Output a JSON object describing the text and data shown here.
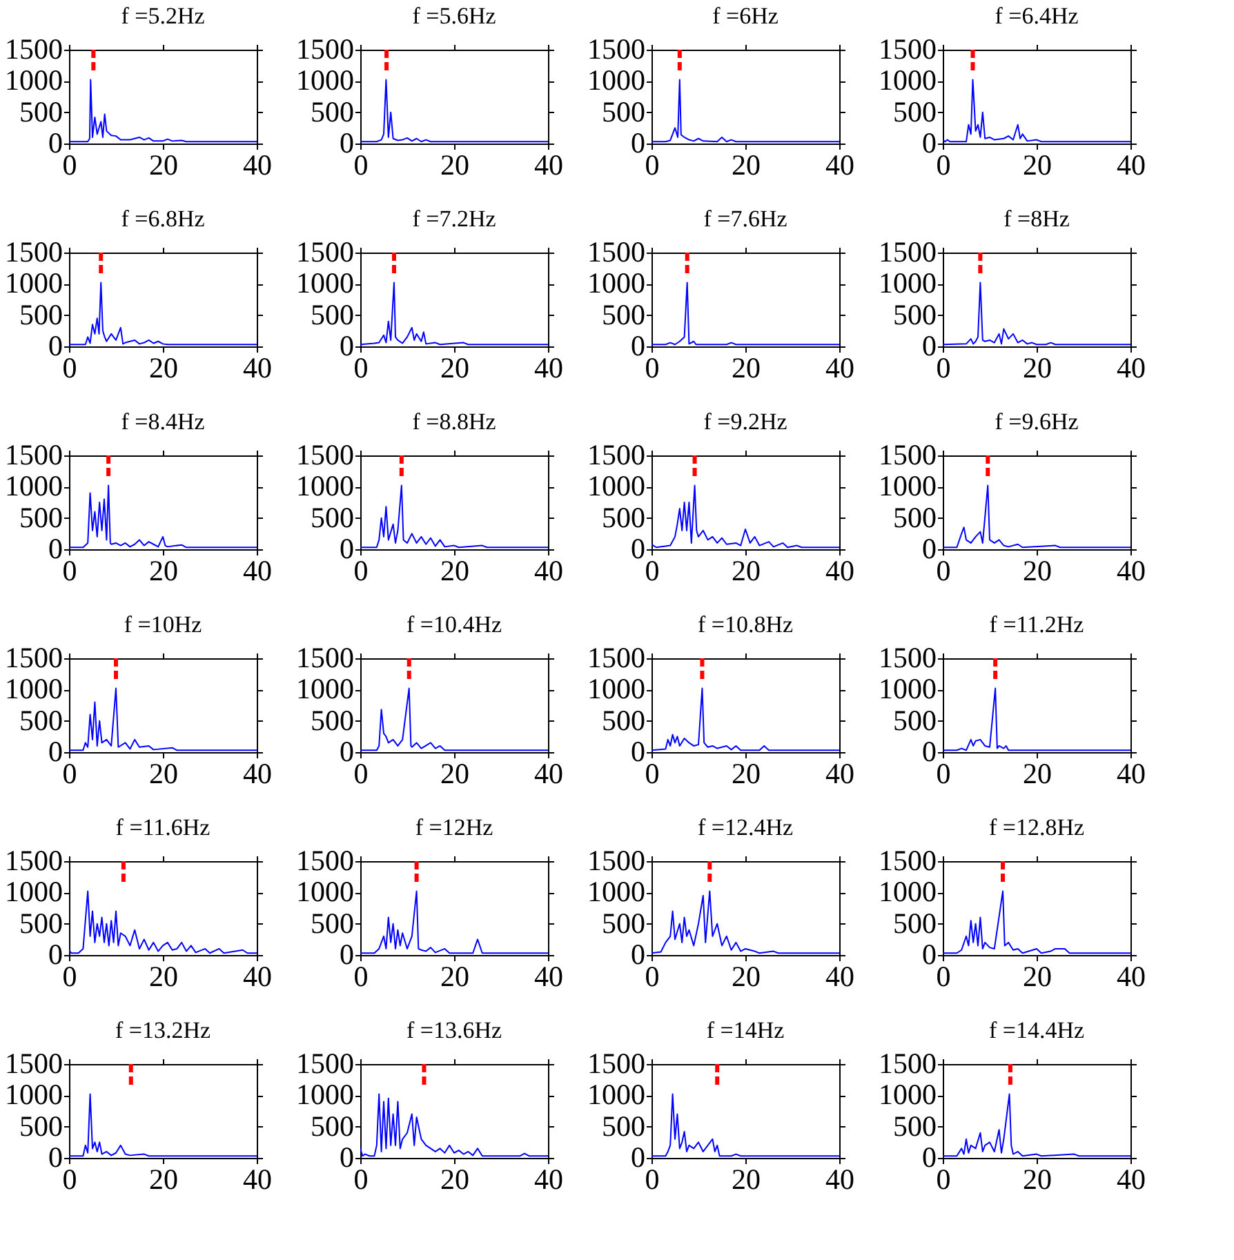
{
  "chart_data": [
    {
      "type": "line",
      "title": "f =5.2Hz",
      "color": "#0000ff",
      "xlim": [
        0,
        40
      ],
      "ylim": [
        0,
        1500
      ],
      "xticks": [
        0,
        20,
        40
      ],
      "yticks": [
        0,
        500,
        1000,
        1500
      ],
      "ref_lines": [
        {
          "axis": "x",
          "value": 5.2,
          "color": "#ff0000",
          "line_style": "dashed"
        }
      ],
      "x": [
        0,
        4,
        4.4,
        4.6,
        5,
        5.5,
        6,
        6.8,
        7.2,
        7.6,
        8,
        9,
        10,
        11,
        13,
        15,
        16,
        17,
        18,
        20,
        21,
        22,
        24,
        25,
        40
      ],
      "values": [
        30,
        30,
        80,
        1020,
        100,
        420,
        150,
        350,
        100,
        470,
        200,
        130,
        120,
        60,
        60,
        100,
        60,
        90,
        40,
        40,
        70,
        40,
        50,
        30,
        30
      ]
    },
    {
      "type": "line",
      "title": "f =5.6Hz",
      "color": "#0000ff",
      "xlim": [
        0,
        40
      ],
      "ylim": [
        0,
        1500
      ],
      "xticks": [
        0,
        20,
        40
      ],
      "yticks": [
        0,
        500,
        1000,
        1500
      ],
      "ref_lines": [
        {
          "axis": "x",
          "value": 5.6,
          "color": "#ff0000",
          "line_style": "dashed"
        }
      ],
      "x": [
        0,
        3.5,
        4.5,
        5,
        5.5,
        6,
        6.5,
        7,
        8,
        9,
        10,
        11,
        12,
        13,
        14,
        15,
        40
      ],
      "values": [
        30,
        30,
        60,
        150,
        1020,
        100,
        500,
        80,
        50,
        60,
        90,
        40,
        80,
        30,
        60,
        30,
        30
      ]
    },
    {
      "type": "line",
      "title": "f =6Hz",
      "color": "#0000ff",
      "xlim": [
        0,
        40
      ],
      "ylim": [
        0,
        1500
      ],
      "xticks": [
        0,
        20,
        40
      ],
      "yticks": [
        0,
        500,
        1000,
        1500
      ],
      "ref_lines": [
        {
          "axis": "x",
          "value": 6,
          "color": "#ff0000",
          "line_style": "dashed"
        }
      ],
      "x": [
        0,
        3,
        4,
        5,
        5.6,
        6,
        6.3,
        7,
        8,
        9,
        10,
        11,
        14,
        15,
        16,
        17,
        18,
        40
      ],
      "values": [
        30,
        30,
        50,
        250,
        100,
        1020,
        140,
        100,
        60,
        40,
        80,
        40,
        30,
        100,
        30,
        60,
        30,
        30
      ]
    },
    {
      "type": "line",
      "title": "f =6.4Hz",
      "color": "#0000ff",
      "xlim": [
        0,
        40
      ],
      "ylim": [
        0,
        1500
      ],
      "xticks": [
        0,
        20,
        40
      ],
      "yticks": [
        0,
        500,
        1000,
        1500
      ],
      "ref_lines": [
        {
          "axis": "x",
          "value": 6.4,
          "color": "#ff0000",
          "line_style": "dashed"
        }
      ],
      "x": [
        0,
        0.5,
        1,
        1.5,
        5,
        5.5,
        6,
        6.4,
        7,
        7.5,
        8,
        8.5,
        9,
        10,
        11,
        13,
        14,
        15,
        16,
        16.5,
        17,
        18,
        20,
        21,
        40
      ],
      "values": [
        60,
        30,
        60,
        30,
        30,
        300,
        150,
        1020,
        200,
        300,
        100,
        500,
        80,
        100,
        60,
        80,
        120,
        60,
        300,
        80,
        150,
        40,
        60,
        30,
        30
      ]
    },
    {
      "type": "line",
      "title": "f =6.8Hz",
      "color": "#0000ff",
      "xlim": [
        0,
        40
      ],
      "ylim": [
        0,
        1500
      ],
      "xticks": [
        0,
        20,
        40
      ],
      "yticks": [
        0,
        500,
        1000,
        1500
      ],
      "ref_lines": [
        {
          "axis": "x",
          "value": 6.8,
          "color": "#ff0000",
          "line_style": "dashed"
        }
      ],
      "x": [
        0,
        3.5,
        4,
        4.5,
        5,
        5.5,
        6,
        6.4,
        6.8,
        7.2,
        7.6,
        8,
        9,
        10,
        11,
        11.5,
        12,
        14,
        15,
        16,
        17,
        18,
        19,
        20,
        21,
        40
      ],
      "values": [
        30,
        30,
        150,
        50,
        350,
        200,
        450,
        200,
        1020,
        250,
        150,
        80,
        200,
        100,
        300,
        40,
        60,
        100,
        40,
        60,
        100,
        50,
        80,
        40,
        30,
        30
      ]
    },
    {
      "type": "line",
      "title": "f =7.2Hz",
      "color": "#0000ff",
      "xlim": [
        0,
        40
      ],
      "ylim": [
        0,
        1500
      ],
      "xticks": [
        0,
        20,
        40
      ],
      "yticks": [
        0,
        500,
        1000,
        1500
      ],
      "ref_lines": [
        {
          "axis": "x",
          "value": 7.2,
          "color": "#ff0000",
          "line_style": "dashed"
        }
      ],
      "x": [
        0,
        3,
        4,
        5,
        5.5,
        6,
        6.5,
        7.2,
        7.5,
        8,
        9,
        10,
        11,
        11.5,
        12,
        13,
        13.5,
        14,
        16,
        17,
        22,
        23,
        40
      ],
      "values": [
        30,
        50,
        60,
        180,
        60,
        400,
        100,
        1020,
        150,
        100,
        50,
        150,
        300,
        100,
        200,
        80,
        230,
        40,
        60,
        30,
        60,
        30,
        30
      ]
    },
    {
      "type": "line",
      "title": "f =7.6Hz",
      "color": "#0000ff",
      "xlim": [
        0,
        40
      ],
      "ylim": [
        0,
        1500
      ],
      "xticks": [
        0,
        20,
        40
      ],
      "yticks": [
        0,
        500,
        1000,
        1500
      ],
      "ref_lines": [
        {
          "axis": "x",
          "value": 7.6,
          "color": "#ff0000",
          "line_style": "dashed"
        }
      ],
      "x": [
        0,
        3,
        4,
        5,
        6,
        7,
        7.6,
        8,
        9,
        9.5,
        16,
        17,
        18,
        40
      ],
      "values": [
        30,
        30,
        60,
        30,
        80,
        150,
        1020,
        40,
        80,
        30,
        30,
        60,
        30,
        30
      ]
    },
    {
      "type": "line",
      "title": "f =8Hz",
      "color": "#0000ff",
      "xlim": [
        0,
        40
      ],
      "ylim": [
        0,
        1500
      ],
      "xticks": [
        0,
        20,
        40
      ],
      "yticks": [
        0,
        500,
        1000,
        1500
      ],
      "ref_lines": [
        {
          "axis": "x",
          "value": 8,
          "color": "#ff0000",
          "line_style": "dashed"
        }
      ],
      "x": [
        0,
        5,
        6,
        6.5,
        7,
        7.5,
        8,
        8.5,
        9,
        10,
        11,
        12,
        12.5,
        13,
        14,
        15,
        16,
        17,
        18,
        19,
        20,
        22,
        23,
        24,
        40
      ],
      "values": [
        30,
        40,
        120,
        40,
        80,
        150,
        1020,
        100,
        80,
        100,
        60,
        200,
        40,
        280,
        120,
        200,
        60,
        100,
        40,
        60,
        30,
        30,
        60,
        30,
        30
      ]
    },
    {
      "type": "line",
      "title": "f =8.4Hz",
      "color": "#0000ff",
      "xlim": [
        0,
        40
      ],
      "ylim": [
        0,
        1500
      ],
      "xticks": [
        0,
        20,
        40
      ],
      "yticks": [
        0,
        500,
        1000,
        1500
      ],
      "ref_lines": [
        {
          "axis": "x",
          "value": 8.4,
          "color": "#ff0000",
          "line_style": "dashed"
        }
      ],
      "x": [
        0,
        3,
        4,
        4.5,
        5,
        5.5,
        6,
        6.5,
        7,
        7.5,
        8,
        8.4,
        8.8,
        9,
        10,
        11,
        12,
        13,
        14,
        15,
        16,
        17,
        18,
        19,
        20,
        20.5,
        21,
        24,
        25,
        40
      ],
      "values": [
        30,
        30,
        100,
        900,
        300,
        600,
        200,
        750,
        300,
        800,
        150,
        1020,
        100,
        80,
        100,
        60,
        100,
        40,
        80,
        150,
        60,
        120,
        80,
        40,
        200,
        60,
        40,
        70,
        30,
        30
      ]
    },
    {
      "type": "line",
      "title": "f =8.8Hz",
      "color": "#0000ff",
      "xlim": [
        0,
        40
      ],
      "ylim": [
        0,
        1500
      ],
      "xticks": [
        0,
        20,
        40
      ],
      "yticks": [
        0,
        500,
        1000,
        1500
      ],
      "ref_lines": [
        {
          "axis": "x",
          "value": 8.8,
          "color": "#ff0000",
          "line_style": "dashed"
        }
      ],
      "x": [
        0,
        3.5,
        4,
        4.5,
        5,
        5.5,
        6,
        7,
        7.5,
        8,
        8.8,
        9.2,
        10,
        11,
        12,
        13,
        14,
        15,
        16,
        17,
        18,
        20,
        21,
        26,
        27,
        40
      ],
      "values": [
        30,
        30,
        150,
        500,
        200,
        680,
        150,
        400,
        100,
        300,
        1020,
        150,
        100,
        250,
        100,
        200,
        80,
        180,
        50,
        150,
        40,
        60,
        30,
        60,
        30,
        30
      ]
    },
    {
      "type": "line",
      "title": "f =9.2Hz",
      "color": "#0000ff",
      "xlim": [
        0,
        40
      ],
      "ylim": [
        0,
        1500
      ],
      "xticks": [
        0,
        20,
        40
      ],
      "yticks": [
        0,
        500,
        1000,
        1500
      ],
      "ref_lines": [
        {
          "axis": "x",
          "value": 9.2,
          "color": "#ff0000",
          "line_style": "dashed"
        }
      ],
      "x": [
        0,
        1,
        4,
        5,
        5.5,
        6,
        6.5,
        7,
        7.5,
        8,
        8.5,
        9.2,
        9.6,
        10,
        11,
        12,
        13,
        14,
        15,
        16,
        18,
        19,
        20,
        21,
        22,
        23,
        25,
        26,
        28,
        29,
        31,
        32,
        40
      ],
      "values": [
        80,
        30,
        60,
        200,
        400,
        650,
        300,
        750,
        300,
        750,
        100,
        1020,
        300,
        200,
        300,
        150,
        200,
        100,
        180,
        80,
        100,
        60,
        320,
        100,
        200,
        60,
        120,
        40,
        100,
        30,
        60,
        30,
        30
      ]
    },
    {
      "type": "line",
      "title": "f =9.6Hz",
      "color": "#0000ff",
      "xlim": [
        0,
        40
      ],
      "ylim": [
        0,
        1500
      ],
      "xticks": [
        0,
        20,
        40
      ],
      "yticks": [
        0,
        500,
        1000,
        1500
      ],
      "ref_lines": [
        {
          "axis": "x",
          "value": 9.6,
          "color": "#ff0000",
          "line_style": "dashed"
        }
      ],
      "x": [
        0,
        3,
        4,
        4.5,
        5,
        6,
        7,
        8,
        8.5,
        9.6,
        10,
        11,
        12,
        13,
        14,
        16,
        17,
        24,
        25,
        40
      ],
      "values": [
        30,
        30,
        250,
        350,
        150,
        100,
        200,
        280,
        100,
        1020,
        150,
        100,
        150,
        60,
        40,
        80,
        30,
        60,
        30,
        30
      ]
    },
    {
      "type": "line",
      "title": "f =10Hz",
      "color": "#0000ff",
      "xlim": [
        0,
        40
      ],
      "ylim": [
        0,
        1500
      ],
      "xticks": [
        0,
        20,
        40
      ],
      "yticks": [
        0,
        500,
        1000,
        1500
      ],
      "ref_lines": [
        {
          "axis": "x",
          "value": 10,
          "color": "#ff0000",
          "line_style": "dashed"
        }
      ],
      "x": [
        0,
        3,
        3.5,
        4,
        4.5,
        5,
        5.5,
        6,
        6.5,
        7,
        8,
        9,
        10,
        10.5,
        12,
        13,
        14,
        15,
        17,
        18,
        22,
        23,
        40
      ],
      "values": [
        30,
        30,
        150,
        80,
        600,
        200,
        800,
        100,
        500,
        150,
        200,
        100,
        1020,
        80,
        150,
        50,
        200,
        80,
        100,
        40,
        70,
        30,
        30
      ]
    },
    {
      "type": "line",
      "title": "f =10.4Hz",
      "color": "#0000ff",
      "xlim": [
        0,
        40
      ],
      "ylim": [
        0,
        1500
      ],
      "xticks": [
        0,
        20,
        40
      ],
      "yticks": [
        0,
        500,
        1000,
        1500
      ],
      "ref_lines": [
        {
          "axis": "x",
          "value": 10.4,
          "color": "#ff0000",
          "line_style": "dashed"
        }
      ],
      "x": [
        0,
        3.5,
        4,
        4.5,
        5,
        5.5,
        6,
        7,
        8,
        9,
        10.4,
        10.8,
        11,
        12,
        13,
        15,
        16,
        17,
        18,
        40
      ],
      "values": [
        30,
        30,
        100,
        680,
        300,
        250,
        150,
        200,
        100,
        200,
        1020,
        100,
        80,
        150,
        60,
        150,
        60,
        100,
        30,
        30
      ]
    },
    {
      "type": "line",
      "title": "f =10.8Hz",
      "color": "#0000ff",
      "xlim": [
        0,
        40
      ],
      "ylim": [
        0,
        1500
      ],
      "xticks": [
        0,
        20,
        40
      ],
      "yticks": [
        0,
        500,
        1000,
        1500
      ],
      "ref_lines": [
        {
          "axis": "x",
          "value": 10.8,
          "color": "#ff0000",
          "line_style": "dashed"
        }
      ],
      "x": [
        0,
        3,
        3.5,
        4,
        4.5,
        5,
        5.5,
        6,
        7,
        8,
        9,
        10,
        10.8,
        11.2,
        12,
        13,
        14,
        16,
        17,
        18,
        19,
        23,
        24,
        25,
        40
      ],
      "values": [
        30,
        50,
        200,
        100,
        280,
        150,
        250,
        100,
        220,
        150,
        100,
        120,
        1020,
        150,
        80,
        100,
        60,
        100,
        40,
        100,
        30,
        30,
        100,
        30,
        30
      ]
    },
    {
      "type": "line",
      "title": "f =11.2Hz",
      "color": "#0000ff",
      "xlim": [
        0,
        40
      ],
      "ylim": [
        0,
        1500
      ],
      "xticks": [
        0,
        20,
        40
      ],
      "yticks": [
        0,
        500,
        1000,
        1500
      ],
      "ref_lines": [
        {
          "axis": "x",
          "value": 11.2,
          "color": "#ff0000",
          "line_style": "dashed"
        }
      ],
      "x": [
        0,
        3,
        4,
        5,
        6,
        6.5,
        7,
        8,
        9,
        10,
        11.2,
        11.6,
        12,
        13,
        13.5,
        14,
        40
      ],
      "values": [
        30,
        30,
        60,
        30,
        200,
        100,
        180,
        200,
        100,
        80,
        1020,
        60,
        100,
        60,
        100,
        30,
        30
      ]
    },
    {
      "type": "line",
      "title": "f =11.6Hz",
      "color": "#0000ff",
      "xlim": [
        0,
        40
      ],
      "ylim": [
        0,
        1500
      ],
      "xticks": [
        0,
        20,
        40
      ],
      "yticks": [
        0,
        500,
        1000,
        1500
      ],
      "ref_lines": [
        {
          "axis": "x",
          "value": 11.6,
          "color": "#ff0000",
          "line_style": "dashed"
        }
      ],
      "x": [
        0,
        0.5,
        2,
        3,
        4,
        4.5,
        5,
        5.5,
        6,
        6.5,
        7,
        7.5,
        8,
        8.5,
        9,
        9.5,
        10,
        10.5,
        11,
        12,
        13,
        14,
        15,
        16,
        17,
        18,
        19,
        20,
        21,
        22,
        23,
        24,
        25,
        26,
        27,
        29,
        30,
        32,
        33,
        37,
        38,
        40
      ],
      "values": [
        80,
        30,
        30,
        100,
        1020,
        300,
        700,
        200,
        500,
        300,
        600,
        200,
        500,
        150,
        550,
        200,
        700,
        150,
        350,
        300,
        150,
        400,
        100,
        250,
        80,
        200,
        60,
        150,
        200,
        80,
        100,
        200,
        60,
        150,
        40,
        100,
        30,
        100,
        30,
        80,
        30,
        30
      ]
    },
    {
      "type": "line",
      "title": "f =12Hz",
      "color": "#0000ff",
      "xlim": [
        0,
        40
      ],
      "ylim": [
        0,
        1500
      ],
      "xticks": [
        0,
        20,
        40
      ],
      "yticks": [
        0,
        500,
        1000,
        1500
      ],
      "ref_lines": [
        {
          "axis": "x",
          "value": 12,
          "color": "#ff0000",
          "line_style": "dashed"
        }
      ],
      "x": [
        0,
        3,
        4,
        5,
        5.5,
        6,
        6.5,
        7,
        7.5,
        8,
        8.5,
        9,
        10,
        11,
        12,
        12.4,
        13,
        14,
        15,
        16,
        18,
        19,
        24,
        25,
        26,
        40
      ],
      "values": [
        30,
        30,
        100,
        300,
        100,
        600,
        200,
        500,
        100,
        400,
        150,
        350,
        100,
        300,
        1020,
        100,
        80,
        60,
        120,
        40,
        100,
        30,
        30,
        250,
        30,
        30
      ]
    },
    {
      "type": "line",
      "title": "f =12.4Hz",
      "color": "#0000ff",
      "xlim": [
        0,
        40
      ],
      "ylim": [
        0,
        1500
      ],
      "xticks": [
        0,
        20,
        40
      ],
      "yticks": [
        0,
        500,
        1000,
        1500
      ],
      "ref_lines": [
        {
          "axis": "x",
          "value": 12.4,
          "color": "#ff0000",
          "line_style": "dashed"
        }
      ],
      "x": [
        0,
        2,
        3,
        4,
        4.5,
        5,
        6,
        6.5,
        7,
        7.5,
        8,
        9,
        10,
        11,
        11.5,
        12.4,
        13,
        14,
        15,
        16,
        17,
        18,
        19,
        20,
        22,
        23,
        26,
        27,
        40
      ],
      "values": [
        30,
        50,
        200,
        300,
        700,
        250,
        500,
        200,
        600,
        300,
        400,
        150,
        500,
        950,
        200,
        1020,
        300,
        500,
        150,
        300,
        80,
        200,
        60,
        100,
        60,
        30,
        60,
        30,
        30
      ]
    },
    {
      "type": "line",
      "title": "f =12.8Hz",
      "color": "#0000ff",
      "xlim": [
        0,
        40
      ],
      "ylim": [
        0,
        1500
      ],
      "xticks": [
        0,
        20,
        40
      ],
      "yticks": [
        0,
        500,
        1000,
        1500
      ],
      "ref_lines": [
        {
          "axis": "x",
          "value": 12.8,
          "color": "#ff0000",
          "line_style": "dashed"
        }
      ],
      "x": [
        0,
        3,
        4,
        5,
        5.5,
        6,
        6.5,
        7,
        7.5,
        8,
        8.5,
        9,
        10,
        11,
        12.8,
        13.2,
        14,
        15,
        16,
        17,
        20,
        21,
        23,
        24,
        26,
        27,
        40
      ],
      "values": [
        30,
        30,
        80,
        300,
        150,
        550,
        200,
        500,
        150,
        600,
        100,
        200,
        120,
        100,
        1020,
        150,
        200,
        80,
        100,
        30,
        100,
        30,
        60,
        100,
        100,
        30,
        30
      ]
    },
    {
      "type": "line",
      "title": "f =13.2Hz",
      "color": "#0000ff",
      "xlim": [
        0,
        40
      ],
      "ylim": [
        0,
        1500
      ],
      "xticks": [
        0,
        20,
        40
      ],
      "yticks": [
        0,
        500,
        1000,
        1500
      ],
      "ref_lines": [
        {
          "axis": "x",
          "value": 13.2,
          "color": "#ff0000",
          "line_style": "dashed"
        }
      ],
      "x": [
        0,
        3,
        3.5,
        4,
        4.5,
        5,
        5.5,
        6,
        6.5,
        7,
        8,
        9,
        10,
        11,
        12,
        13,
        16,
        17,
        40
      ],
      "values": [
        30,
        30,
        200,
        80,
        1020,
        150,
        250,
        100,
        250,
        60,
        100,
        40,
        80,
        200,
        60,
        40,
        60,
        30,
        30
      ]
    },
    {
      "type": "line",
      "title": "f =13.6Hz",
      "color": "#0000ff",
      "xlim": [
        0,
        40
      ],
      "ylim": [
        0,
        1500
      ],
      "xticks": [
        0,
        20,
        40
      ],
      "yticks": [
        0,
        500,
        1000,
        1500
      ],
      "ref_lines": [
        {
          "axis": "x",
          "value": 13.6,
          "color": "#ff0000",
          "line_style": "dashed"
        }
      ],
      "x": [
        0,
        0.5,
        1,
        2,
        3,
        3.5,
        4,
        4.5,
        5,
        5.5,
        6,
        6.5,
        7,
        7.5,
        8,
        8.5,
        9,
        10,
        11,
        11.5,
        12,
        13,
        14,
        15,
        16,
        17,
        18,
        19,
        20,
        21,
        22,
        23,
        24,
        25,
        26,
        34,
        35,
        36,
        40
      ],
      "values": [
        150,
        30,
        60,
        30,
        30,
        200,
        1020,
        100,
        900,
        150,
        950,
        200,
        700,
        200,
        900,
        150,
        300,
        400,
        700,
        200,
        650,
        300,
        200,
        150,
        100,
        150,
        80,
        200,
        80,
        120,
        60,
        100,
        40,
        150,
        30,
        30,
        70,
        30,
        30
      ]
    },
    {
      "type": "line",
      "title": "f =14Hz",
      "color": "#0000ff",
      "xlim": [
        0,
        40
      ],
      "ylim": [
        0,
        1500
      ],
      "xticks": [
        0,
        20,
        40
      ],
      "yticks": [
        0,
        500,
        1000,
        1500
      ],
      "ref_lines": [
        {
          "axis": "x",
          "value": 14,
          "color": "#ff0000",
          "line_style": "dashed"
        }
      ],
      "x": [
        0,
        3,
        3.5,
        4,
        4.5,
        5,
        5.5,
        6,
        6.5,
        7,
        7.5,
        8,
        9,
        10,
        11,
        12,
        13,
        13.5,
        14,
        14.5,
        17,
        18,
        19,
        40
      ],
      "values": [
        30,
        30,
        100,
        200,
        1020,
        300,
        700,
        150,
        250,
        420,
        100,
        200,
        150,
        250,
        100,
        200,
        300,
        100,
        200,
        30,
        30,
        60,
        30,
        30
      ]
    },
    {
      "type": "line",
      "title": "f =14.4Hz",
      "color": "#0000ff",
      "xlim": [
        0,
        40
      ],
      "ylim": [
        0,
        1500
      ],
      "xticks": [
        0,
        20,
        40
      ],
      "yticks": [
        0,
        500,
        1000,
        1500
      ],
      "ref_lines": [
        {
          "axis": "x",
          "value": 14.4,
          "color": "#ff0000",
          "line_style": "dashed"
        }
      ],
      "x": [
        0,
        3,
        4,
        4.5,
        5,
        5.5,
        6,
        7,
        8,
        8.5,
        9,
        10,
        11,
        12,
        12.5,
        13,
        14.2,
        14.6,
        15,
        16,
        17,
        20,
        21,
        28,
        29,
        40
      ],
      "values": [
        30,
        30,
        150,
        60,
        300,
        80,
        200,
        150,
        400,
        100,
        200,
        250,
        100,
        450,
        80,
        300,
        1020,
        200,
        60,
        100,
        30,
        60,
        30,
        60,
        30,
        30
      ]
    }
  ]
}
